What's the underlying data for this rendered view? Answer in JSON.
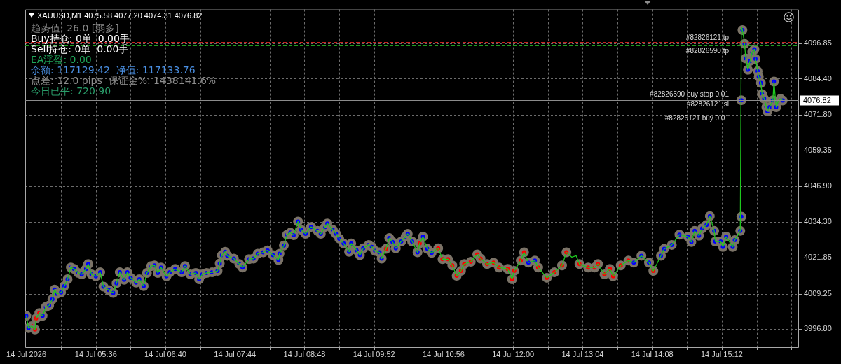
{
  "chart_data": {
    "type": "line",
    "title": "XAUUSD,M1 4075.58 4077.20 4074.31 4076.82",
    "annotations": [
      "趋势值: 26.0 [弱多]",
      "Buy持仓: 0单  0.00手",
      "Sell持仓: 0单  0.00手",
      "EA浮盈: 0.00",
      "余额: 117129.42  净值: 117133.76",
      "点差: 12.0 pips  保证金%: 1438141.6%",
      "今日已平: 720.90"
    ],
    "xlim": [
      "2026-07-14T04:31",
      "2026-07-14T16:23"
    ],
    "xticks": [
      {
        "value": "2026-07-14T04:32",
        "label": "14 Jul 2026"
      },
      {
        "value": "2026-07-14T05:04",
        "label": null
      },
      {
        "value": "2026-07-14T05:36",
        "label": "14 Jul 05:36"
      },
      {
        "value": "2026-07-14T06:08",
        "label": null
      },
      {
        "value": "2026-07-14T06:40",
        "label": "14 Jul 06:40"
      },
      {
        "value": "2026-07-14T07:12",
        "label": null
      },
      {
        "value": "2026-07-14T07:44",
        "label": "14 Jul 07:44"
      },
      {
        "value": "2026-07-14T08:16",
        "label": null
      },
      {
        "value": "2026-07-14T08:48",
        "label": "14 Jul 08:48"
      },
      {
        "value": "2026-07-14T09:20",
        "label": null
      },
      {
        "value": "2026-07-14T09:52",
        "label": "14 Jul 09:52"
      },
      {
        "value": "2026-07-14T10:24",
        "label": null
      },
      {
        "value": "2026-07-14T10:56",
        "label": "14 Jul 10:56"
      },
      {
        "value": "2026-07-14T11:28",
        "label": null
      },
      {
        "value": "2026-07-14T12:00",
        "label": "14 Jul 12:00"
      },
      {
        "value": "2026-07-14T12:32",
        "label": null
      },
      {
        "value": "2026-07-14T13:04",
        "label": "14 Jul 13:04"
      },
      {
        "value": "2026-07-14T13:36",
        "label": null
      },
      {
        "value": "2026-07-14T14:08",
        "label": "14 Jul 14:08"
      },
      {
        "value": "2026-07-14T14:40",
        "label": null
      },
      {
        "value": "2026-07-14T15:12",
        "label": "14 Jul 15:12"
      },
      {
        "value": "2026-07-14T15:44",
        "label": null
      },
      {
        "value": "2026-07-14T16:16",
        "label": null
      }
    ],
    "ylim": [
      3990.3,
      4108.6
    ],
    "yticks": [
      {
        "value": 3996.8,
        "label": "3996.80"
      },
      4009.25,
      4021.85,
      {
        "value": 4034.3,
        "label": "4034.30"
      },
      {
        "value": 4046.9,
        "label": "4046.90"
      },
      4059.35,
      {
        "value": 4071.8,
        "label": "4071.80"
      },
      {
        "value": 4084.4,
        "label": "4084.40"
      },
      4096.85
    ],
    "grid": true,
    "ref_lines": [
      {
        "axis": "y",
        "value": 4097.2,
        "label": "#82826121 tp",
        "color": "#cc2020",
        "line_style": "dashed"
      },
      {
        "axis": "y",
        "value": 4095.9,
        "label": "#82826590 tp",
        "color": "#20a020",
        "line_style": "dashed"
      },
      {
        "axis": "y",
        "value": 4077.5,
        "label": "#82826590 buy stop 0.01",
        "color": "#20a020",
        "line_style": "dashed"
      },
      {
        "axis": "y",
        "value": 4076.82,
        "label": "4076.82",
        "color": "#8c8c8c",
        "line_style": "solid"
      },
      {
        "axis": "y",
        "value": 4074.1,
        "label": "#82826121 sl",
        "color": "#cc2020",
        "line_style": "dashed"
      },
      {
        "axis": "y",
        "value": 4072.5,
        "label": "#82826121 buy 0.01",
        "color": "#20a020",
        "line_style": "dashed"
      }
    ],
    "series": [
      {
        "color": "#1ec81e",
        "x": [
          "2026-07-14T04:32",
          "2026-07-14T04:34",
          "2026-07-14T04:37",
          "2026-07-14T04:40",
          "2026-07-14T04:41",
          "2026-07-14T04:44",
          "2026-07-14T04:47",
          "2026-07-14T04:50",
          "2026-07-14T04:53",
          "2026-07-14T04:56",
          "2026-07-14T04:58",
          "2026-07-14T05:00",
          "2026-07-14T05:04",
          "2026-07-14T05:07",
          "2026-07-14T05:10",
          "2026-07-14T05:13",
          "2026-07-14T05:16",
          "2026-07-14T05:20",
          "2026-07-14T05:23",
          "2026-07-14T05:27",
          "2026-07-14T05:29",
          "2026-07-14T05:32",
          "2026-07-14T05:36",
          "2026-07-14T05:40",
          "2026-07-14T05:43",
          "2026-07-14T05:48",
          "2026-07-14T05:52",
          "2026-07-14T05:55",
          "2026-07-14T05:58",
          "2026-07-14T06:02",
          "2026-07-14T06:05",
          "2026-07-14T06:08",
          "2026-07-14T06:13",
          "2026-07-14T06:16",
          "2026-07-14T06:20",
          "2026-07-14T06:23",
          "2026-07-14T06:27",
          "2026-07-14T06:30",
          "2026-07-14T06:33",
          "2026-07-14T06:36",
          "2026-07-14T06:41",
          "2026-07-14T06:44",
          "2026-07-14T06:49",
          "2026-07-14T06:55",
          "2026-07-14T06:58",
          "2026-07-14T07:03",
          "2026-07-14T07:08",
          "2026-07-14T07:11",
          "2026-07-14T07:14",
          "2026-07-14T07:18",
          "2026-07-14T07:23",
          "2026-07-14T07:28",
          "2026-07-14T07:30",
          "2026-07-14T07:32",
          "2026-07-14T07:35",
          "2026-07-14T07:37",
          "2026-07-14T07:43",
          "2026-07-14T07:48",
          "2026-07-14T07:51",
          "2026-07-14T07:57",
          "2026-07-14T08:01",
          "2026-07-14T08:05",
          "2026-07-14T08:10",
          "2026-07-14T08:14",
          "2026-07-14T08:19",
          "2026-07-14T08:24",
          "2026-07-14T08:25",
          "2026-07-14T08:29",
          "2026-07-14T08:32",
          "2026-07-14T08:35",
          "2026-07-14T08:38",
          "2026-07-14T08:42",
          "2026-07-14T08:45",
          "2026-07-14T08:49",
          "2026-07-14T08:54",
          "2026-07-14T09:00",
          "2026-07-14T09:03",
          "2026-07-14T09:07",
          "2026-07-14T09:09",
          "2026-07-14T09:14",
          "2026-07-14T09:17",
          "2026-07-14T09:20",
          "2026-07-14T09:24",
          "2026-07-14T09:29",
          "2026-07-14T09:31",
          "2026-07-14T09:36",
          "2026-07-14T09:39",
          "2026-07-14T09:42",
          "2026-07-14T09:47",
          "2026-07-14T09:50",
          "2026-07-14T09:53",
          "2026-07-14T09:57",
          "2026-07-14T09:59",
          "2026-07-14T10:03",
          "2026-07-14T10:06",
          "2026-07-14T10:09",
          "2026-07-14T10:12",
          "2026-07-14T10:17",
          "2026-07-14T10:21",
          "2026-07-14T10:23",
          "2026-07-14T10:27",
          "2026-07-14T10:32",
          "2026-07-14T10:34",
          "2026-07-14T10:37",
          "2026-07-14T10:41",
          "2026-07-14T10:45",
          "2026-07-14T10:51",
          "2026-07-14T10:55",
          "2026-07-14T11:00",
          "2026-07-14T11:04",
          "2026-07-14T11:08",
          "2026-07-14T11:12",
          "2026-07-14T11:15",
          "2026-07-14T11:21",
          "2026-07-14T11:27",
          "2026-07-14T11:30",
          "2026-07-14T11:36",
          "2026-07-14T11:42",
          "2026-07-14T11:47",
          "2026-07-14T11:55",
          "2026-07-14T11:59",
          "2026-07-14T12:01",
          "2026-07-14T12:07",
          "2026-07-14T12:10",
          "2026-07-14T12:14",
          "2026-07-14T12:20",
          "2026-07-14T12:23",
          "2026-07-14T12:31",
          "2026-07-14T12:38",
          "2026-07-14T12:45",
          "2026-07-14T12:49",
          "2026-07-14T12:54",
          "2026-07-14T12:58",
          "2026-07-14T13:01",
          "2026-07-14T13:09",
          "2026-07-14T13:15",
          "2026-07-14T13:18",
          "2026-07-14T13:24",
          "2026-07-14T13:29",
          "2026-07-14T13:32",
          "2026-07-14T13:39",
          "2026-07-14T13:46",
          "2026-07-14T13:51",
          "2026-07-14T13:58",
          "2026-07-14T14:05",
          "2026-07-14T14:09",
          "2026-07-14T14:16",
          "2026-07-14T14:19",
          "2026-07-14T14:26",
          "2026-07-14T14:33",
          "2026-07-14T14:41",
          "2026-07-14T14:44",
          "2026-07-14T14:47",
          "2026-07-14T14:51",
          "2026-07-14T14:54",
          "2026-07-14T14:58",
          "2026-07-14T15:01",
          "2026-07-14T15:05",
          "2026-07-14T15:06",
          "2026-07-14T15:11",
          "2026-07-14T15:13",
          "2026-07-14T15:16",
          "2026-07-14T15:22",
          "2026-07-14T15:24",
          "2026-07-14T15:29",
          "2026-07-14T15:30",
          "2026-07-14T15:31",
          "2026-07-14T15:33",
          "2026-07-14T15:34",
          "2026-07-14T15:36",
          "2026-07-14T15:38",
          "2026-07-14T15:40",
          "2026-07-14T15:42",
          "2026-07-14T15:43",
          "2026-07-14T15:45",
          "2026-07-14T15:46",
          "2026-07-14T15:48",
          "2026-07-14T15:49",
          "2026-07-14T15:51",
          "2026-07-14T15:53",
          "2026-07-14T15:54",
          "2026-07-14T15:56",
          "2026-07-14T15:59",
          "2026-07-14T16:00",
          "2026-07-14T16:02",
          "2026-07-14T16:04",
          "2026-07-14T16:06",
          "2026-07-14T16:08"
        ],
        "values": [
          4001.5,
          3997.2,
          3997.9,
          3996.7,
          4000.6,
          4002.5,
          4001.5,
          4004.6,
          4005.1,
          4007.3,
          4010.7,
          4009.2,
          4009.7,
          4011.9,
          4014.3,
          4018.4,
          4017.9,
          4016.5,
          4016.0,
          4017.9,
          4019.6,
          4016.0,
          4015.3,
          4016.7,
          4011.7,
          4010.5,
          4009.5,
          4012.9,
          4016.7,
          4014.1,
          4016.7,
          4014.8,
          4013.1,
          4014.3,
          4011.9,
          4016.5,
          4018.9,
          4019.1,
          4016.5,
          4018.4,
          4015.3,
          4016.7,
          4017.9,
          4016.7,
          4018.9,
          4016.0,
          4016.5,
          4014.3,
          4016.0,
          4016.5,
          4016.7,
          4017.2,
          4019.8,
          4022.7,
          4023.9,
          4022.5,
          4021.5,
          4019.6,
          4018.4,
          4021.3,
          4021.5,
          4023.2,
          4023.7,
          4024.4,
          4022.7,
          4021.0,
          4023.2,
          4026.1,
          4029.9,
          4030.6,
          4029.7,
          4034.5,
          4031.6,
          4030.2,
          4032.6,
          4031.2,
          4030.2,
          4032.6,
          4033.8,
          4031.6,
          4030.2,
          4028.5,
          4026.8,
          4023.9,
          4026.8,
          4024.4,
          4022.7,
          4025.1,
          4026.3,
          4025.6,
          4024.2,
          4023.7,
          4021.5,
          4024.9,
          4028.7,
          4027.3,
          4025.1,
          4027.5,
          4029.2,
          4030.2,
          4027.5,
          4023.7,
          4026.8,
          4029.2,
          4024.9,
          4023.5,
          4025.1,
          4021.3,
          4021.3,
          4019.1,
          4015.5,
          4017.2,
          4019.6,
          4020.4,
          4023.0,
          4021.5,
          4019.6,
          4020.1,
          4018.4,
          4017.9,
          4014.3,
          4017.2,
          4020.8,
          4023.7,
          4020.1,
          4020.8,
          4018.4,
          4014.8,
          4016.7,
          4019.1,
          4023.7,
          4022.0,
          4022.5,
          4019.6,
          4018.4,
          4018.4,
          4019.6,
          4016.0,
          4017.9,
          4015.3,
          4019.1,
          4020.8,
          4020.1,
          4022.5,
          4020.1,
          4017.2,
          4022.5,
          4024.9,
          4026.3,
          4029.9,
          4029.2,
          4027.3,
          4031.2,
          4029.5,
          4032.1,
          4033.3,
          4036.4,
          4031.2,
          4027.5,
          4027.5,
          4025.6,
          4029.2,
          4025.6,
          4028.0,
          4031.2,
          4102.6,
          4101.4,
          4096.6,
          4091.5,
          4087.5,
          4090.6,
          4093.7,
          4094.7,
          4091.3,
          4087.0,
          4085.1,
          4082.9,
          4079.0,
          4077.4,
          4074.5,
          4073.0,
          4074.5,
          4076.9,
          4083.4,
          4074.5,
          4076.6,
          4077.4,
          4076.8
        ]
      },
      {
        "type": "scatter",
        "color": "#0000ff",
        "marker": "circle",
        "x": [
          "2026-07-14T04:32",
          "2026-07-14T04:34",
          "2026-07-14T04:47",
          "2026-07-14T04:50",
          "2026-07-14T04:53",
          "2026-07-14T04:56",
          "2026-07-14T04:58",
          "2026-07-14T05:00",
          "2026-07-14T05:04",
          "2026-07-14T05:07",
          "2026-07-14T05:10",
          "2026-07-14T05:13",
          "2026-07-14T05:16",
          "2026-07-14T05:20",
          "2026-07-14T05:23",
          "2026-07-14T05:27",
          "2026-07-14T05:29",
          "2026-07-14T05:32",
          "2026-07-14T05:36",
          "2026-07-14T05:40",
          "2026-07-14T05:43",
          "2026-07-14T05:48",
          "2026-07-14T05:52",
          "2026-07-14T05:55",
          "2026-07-14T05:58",
          "2026-07-14T06:02",
          "2026-07-14T06:05",
          "2026-07-14T06:08",
          "2026-07-14T06:13",
          "2026-07-14T06:16",
          "2026-07-14T06:20",
          "2026-07-14T06:23",
          "2026-07-14T06:27",
          "2026-07-14T06:30",
          "2026-07-14T06:33",
          "2026-07-14T06:36",
          "2026-07-14T06:41",
          "2026-07-14T06:44",
          "2026-07-14T06:49",
          "2026-07-14T06:55",
          "2026-07-14T06:58",
          "2026-07-14T07:03",
          "2026-07-14T07:08",
          "2026-07-14T07:11",
          "2026-07-14T07:14",
          "2026-07-14T07:18",
          "2026-07-14T07:23",
          "2026-07-14T07:28",
          "2026-07-14T07:30",
          "2026-07-14T07:32",
          "2026-07-14T07:35",
          "2026-07-14T07:37",
          "2026-07-14T07:43",
          "2026-07-14T07:48",
          "2026-07-14T07:51",
          "2026-07-14T07:57",
          "2026-07-14T08:01",
          "2026-07-14T08:05",
          "2026-07-14T08:10",
          "2026-07-14T08:14",
          "2026-07-14T08:19",
          "2026-07-14T08:24",
          "2026-07-14T08:25",
          "2026-07-14T08:29",
          "2026-07-14T08:32",
          "2026-07-14T08:35",
          "2026-07-14T08:38",
          "2026-07-14T08:42",
          "2026-07-14T08:45",
          "2026-07-14T08:49",
          "2026-07-14T08:54",
          "2026-07-14T09:00",
          "2026-07-14T09:03",
          "2026-07-14T09:07",
          "2026-07-14T09:09",
          "2026-07-14T09:14",
          "2026-07-14T09:17",
          "2026-07-14T09:20",
          "2026-07-14T09:24",
          "2026-07-14T09:29",
          "2026-07-14T09:31",
          "2026-07-14T09:36",
          "2026-07-14T09:39",
          "2026-07-14T09:42",
          "2026-07-14T09:47",
          "2026-07-14T09:50",
          "2026-07-14T09:53",
          "2026-07-14T09:57",
          "2026-07-14T09:59",
          "2026-07-14T10:06",
          "2026-07-14T10:09",
          "2026-07-14T10:12",
          "2026-07-14T10:17",
          "2026-07-14T10:21",
          "2026-07-14T10:23",
          "2026-07-14T10:27",
          "2026-07-14T10:32",
          "2026-07-14T10:37",
          "2026-07-14T10:41",
          "2026-07-14T10:45",
          "2026-07-14T12:14",
          "2026-07-14T12:20",
          "2026-07-14T13:51",
          "2026-07-14T13:58",
          "2026-07-14T14:05",
          "2026-07-14T14:16",
          "2026-07-14T14:19",
          "2026-07-14T14:26",
          "2026-07-14T14:33",
          "2026-07-14T14:41",
          "2026-07-14T14:44",
          "2026-07-14T14:47",
          "2026-07-14T14:51",
          "2026-07-14T14:54",
          "2026-07-14T14:58",
          "2026-07-14T15:01",
          "2026-07-14T15:05",
          "2026-07-14T15:06",
          "2026-07-14T15:11",
          "2026-07-14T15:13",
          "2026-07-14T15:16",
          "2026-07-14T15:22",
          "2026-07-14T15:24",
          "2026-07-14T15:29",
          "2026-07-14T15:30",
          "2026-07-14T15:30",
          "2026-07-14T15:31",
          "2026-07-14T15:33",
          "2026-07-14T15:34",
          "2026-07-14T15:36",
          "2026-07-14T15:38",
          "2026-07-14T15:40",
          "2026-07-14T15:42",
          "2026-07-14T15:43",
          "2026-07-14T15:45",
          "2026-07-14T15:46",
          "2026-07-14T15:48",
          "2026-07-14T15:49",
          "2026-07-14T15:51",
          "2026-07-14T15:53",
          "2026-07-14T15:54",
          "2026-07-14T15:56",
          "2026-07-14T15:59",
          "2026-07-14T16:00",
          "2026-07-14T16:02",
          "2026-07-14T16:04",
          "2026-07-14T16:06",
          "2026-07-14T16:08"
        ],
        "values": [
          4001.5,
          3997.2,
          4001.5,
          4004.6,
          4005.1,
          4007.3,
          4010.7,
          4009.2,
          4009.7,
          4011.9,
          4014.3,
          4018.4,
          4017.9,
          4016.5,
          4016.0,
          4017.9,
          4019.6,
          4016.0,
          4015.3,
          4016.7,
          4011.7,
          4010.5,
          4009.5,
          4012.9,
          4016.7,
          4014.1,
          4016.7,
          4014.8,
          4013.1,
          4014.3,
          4011.9,
          4016.5,
          4018.9,
          4019.1,
          4016.5,
          4018.4,
          4015.3,
          4016.7,
          4017.9,
          4016.7,
          4018.9,
          4016.0,
          4016.5,
          4014.3,
          4016.0,
          4016.5,
          4016.7,
          4017.2,
          4019.8,
          4022.7,
          4023.9,
          4022.5,
          4021.5,
          4019.6,
          4018.4,
          4021.3,
          4021.5,
          4023.2,
          4023.7,
          4024.4,
          4022.7,
          4021.0,
          4023.2,
          4026.1,
          4029.9,
          4030.6,
          4029.7,
          4034.5,
          4031.6,
          4030.2,
          4032.6,
          4031.2,
          4030.2,
          4032.6,
          4033.8,
          4031.6,
          4030.2,
          4028.5,
          4026.8,
          4023.9,
          4026.8,
          4024.4,
          4022.7,
          4025.1,
          4026.3,
          4025.6,
          4024.2,
          4023.7,
          4021.5,
          4028.7,
          4027.3,
          4025.1,
          4027.5,
          4029.2,
          4030.2,
          4027.5,
          4023.7,
          4029.2,
          4024.9,
          4023.5,
          4020.1,
          4020.8,
          4020.1,
          4022.5,
          4020.1,
          4022.5,
          4024.9,
          4026.3,
          4029.9,
          4029.2,
          4027.3,
          4031.2,
          4029.5,
          4032.1,
          4033.3,
          4036.4,
          4031.2,
          4027.5,
          4027.5,
          4025.6,
          4029.2,
          4025.6,
          4028.0,
          4031.2,
          4036.2,
          4076.9,
          4101.4,
          4096.6,
          4091.5,
          4087.5,
          4090.6,
          4093.7,
          4094.7,
          4091.3,
          4087.0,
          4085.1,
          4082.9,
          4079.0,
          4077.4,
          4074.5,
          4073.0,
          4074.5,
          4076.9,
          4083.4,
          4074.5,
          4076.6,
          4077.4,
          4076.8
        ]
      },
      {
        "type": "scatter",
        "color": "#ff0000",
        "marker": "circle",
        "x": [
          "2026-07-14T04:37",
          "2026-07-14T04:40",
          "2026-07-14T04:41",
          "2026-07-14T04:44",
          "2026-07-14T10:03",
          "2026-07-14T10:34",
          "2026-07-14T10:51",
          "2026-07-14T10:55",
          "2026-07-14T11:00",
          "2026-07-14T11:04",
          "2026-07-14T11:08",
          "2026-07-14T11:12",
          "2026-07-14T11:15",
          "2026-07-14T11:21",
          "2026-07-14T11:27",
          "2026-07-14T11:30",
          "2026-07-14T11:36",
          "2026-07-14T11:42",
          "2026-07-14T11:47",
          "2026-07-14T11:55",
          "2026-07-14T11:59",
          "2026-07-14T12:01",
          "2026-07-14T12:07",
          "2026-07-14T12:10",
          "2026-07-14T12:23",
          "2026-07-14T12:31",
          "2026-07-14T12:38",
          "2026-07-14T12:45",
          "2026-07-14T12:49",
          "2026-07-14T13:01",
          "2026-07-14T13:09",
          "2026-07-14T13:15",
          "2026-07-14T13:18",
          "2026-07-14T13:24",
          "2026-07-14T13:29",
          "2026-07-14T13:32",
          "2026-07-14T13:39",
          "2026-07-14T13:46",
          "2026-07-14T14:09"
        ],
        "values": [
          3997.9,
          3996.7,
          4000.6,
          4002.5,
          4024.9,
          4026.8,
          4025.1,
          4021.3,
          4021.3,
          4019.1,
          4015.5,
          4017.2,
          4019.6,
          4020.4,
          4023.0,
          4021.5,
          4019.6,
          4020.1,
          4018.4,
          4017.9,
          4014.3,
          4017.2,
          4020.8,
          4023.7,
          4018.4,
          4014.8,
          4016.7,
          4019.1,
          4023.7,
          4019.6,
          4018.4,
          4018.4,
          4019.6,
          4016.0,
          4017.9,
          4015.3,
          4019.1,
          4020.8,
          4017.2
        ]
      }
    ]
  }
}
